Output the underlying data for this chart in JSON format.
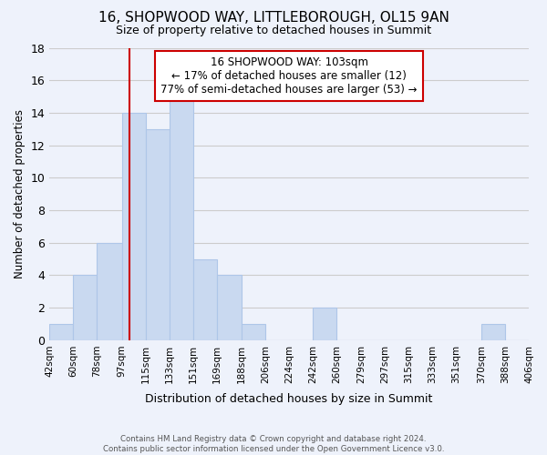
{
  "title": "16, SHOPWOOD WAY, LITTLEBOROUGH, OL15 9AN",
  "subtitle": "Size of property relative to detached houses in Summit",
  "xlabel": "Distribution of detached houses by size in Summit",
  "ylabel": "Number of detached properties",
  "footer_line1": "Contains HM Land Registry data © Crown copyright and database right 2024.",
  "footer_line2": "Contains public sector information licensed under the Open Government Licence v3.0.",
  "bin_edges": [
    42,
    60,
    78,
    97,
    115,
    133,
    151,
    169,
    188,
    206,
    224,
    242,
    260,
    279,
    297,
    315,
    333,
    351,
    370,
    388,
    406
  ],
  "counts": [
    1,
    4,
    6,
    14,
    13,
    15,
    5,
    4,
    1,
    0,
    0,
    2,
    0,
    0,
    0,
    0,
    0,
    0,
    1,
    0
  ],
  "bar_color": "#c9d9f0",
  "bar_edgecolor": "#aec6e8",
  "bar_linewidth": 0.8,
  "grid_color": "#cccccc",
  "property_size": 103,
  "red_line_color": "#cc0000",
  "annotation_title": "16 SHOPWOOD WAY: 103sqm",
  "annotation_line1": "← 17% of detached houses are smaller (12)",
  "annotation_line2": "77% of semi-detached houses are larger (53) →",
  "annotation_box_color": "#ffffff",
  "annotation_box_edgecolor": "#cc0000",
  "ylim": [
    0,
    18
  ],
  "yticks": [
    0,
    2,
    4,
    6,
    8,
    10,
    12,
    14,
    16,
    18
  ],
  "xtick_labels": [
    "42sqm",
    "60sqm",
    "78sqm",
    "97sqm",
    "115sqm",
    "133sqm",
    "151sqm",
    "169sqm",
    "188sqm",
    "206sqm",
    "224sqm",
    "242sqm",
    "260sqm",
    "279sqm",
    "297sqm",
    "315sqm",
    "333sqm",
    "351sqm",
    "370sqm",
    "388sqm",
    "406sqm"
  ],
  "background_color": "#eef2fb",
  "title_fontsize": 11,
  "subtitle_fontsize": 9,
  "ylabel_fontsize": 8.5,
  "xlabel_fontsize": 9,
  "ytick_fontsize": 9,
  "xtick_fontsize": 7.5
}
